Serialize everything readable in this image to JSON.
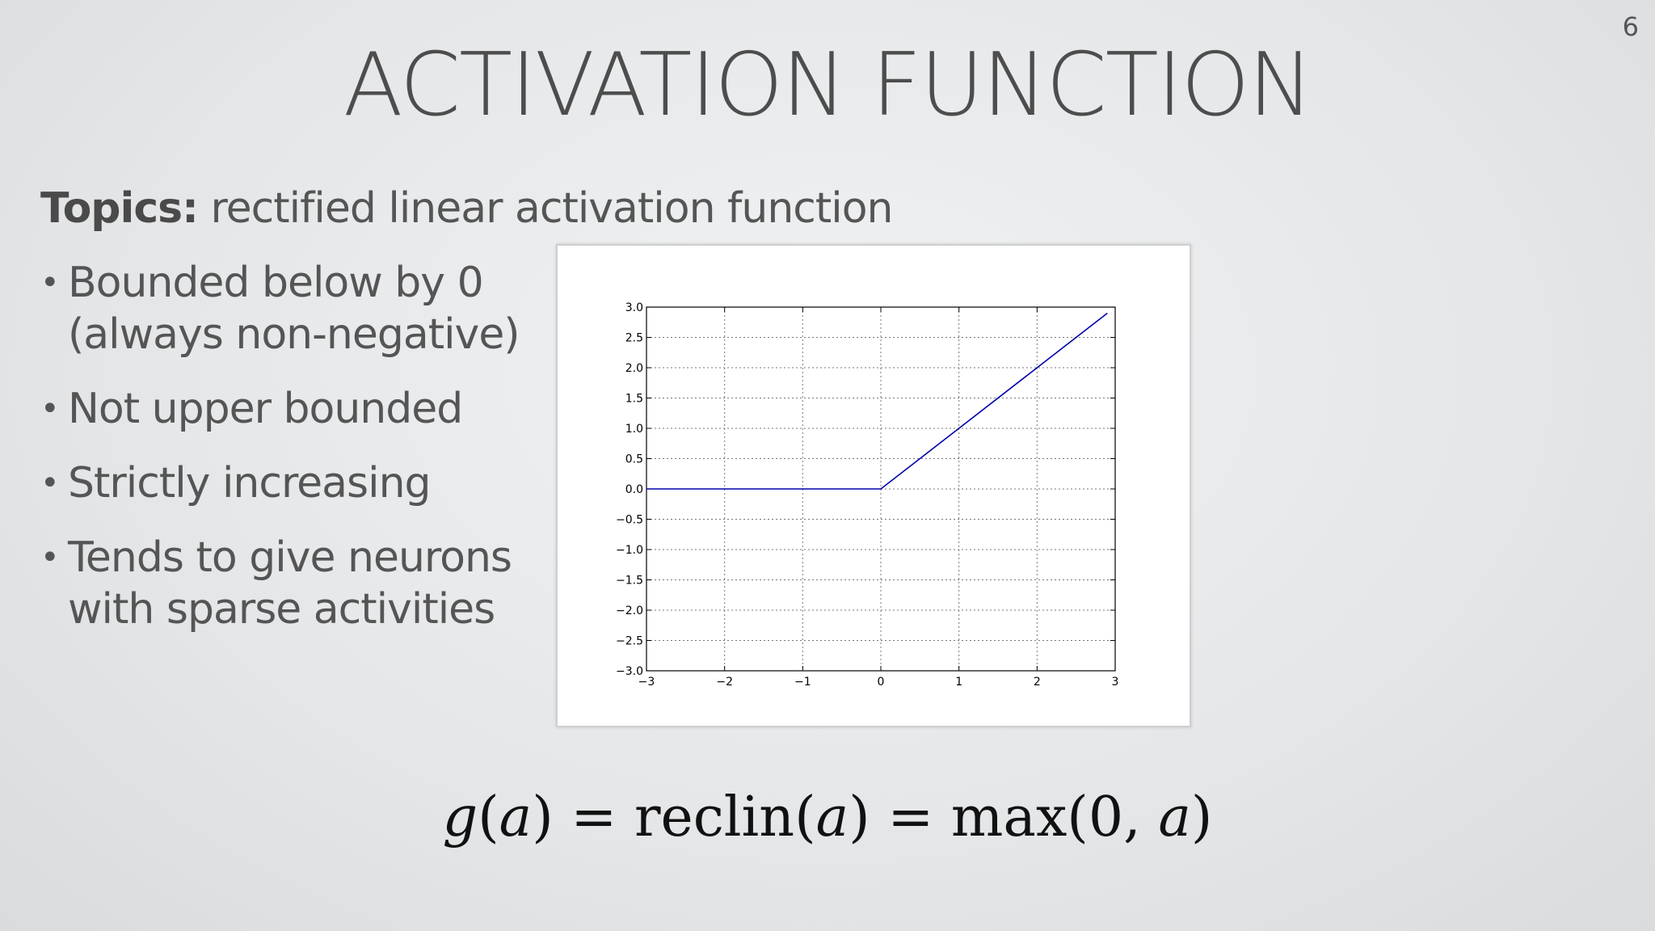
{
  "slide": {
    "number": "6",
    "title": "ACTIVATION FUNCTION",
    "topics_label": "Topics:",
    "topics_text": "rectified linear activation function",
    "bullets": [
      "Bounded below by 0\n(always non-negative)",
      "Not upper bounded",
      "Strictly increasing",
      "Tends to give neurons\nwith sparse activities"
    ],
    "formula": {
      "g": "g",
      "a": "a",
      "eq": "=",
      "reclin": "reclin",
      "max": "max",
      "zero": "0"
    }
  },
  "chart_data": {
    "type": "line",
    "title": "",
    "xlabel": "",
    "ylabel": "",
    "xlim": [
      -3,
      3
    ],
    "ylim": [
      -3,
      3
    ],
    "grid": true,
    "x_ticks": [
      "−3",
      "−2",
      "−1",
      "0",
      "1",
      "2",
      "3"
    ],
    "y_ticks": [
      "3.0",
      "2.5",
      "2.0",
      "1.5",
      "1.0",
      "0.5",
      "0.0",
      "−0.5",
      "−1.0",
      "−1.5",
      "−2.0",
      "−2.5",
      "−3.0"
    ],
    "series": [
      {
        "color": "#0000aa",
        "x": [
          -3,
          -2,
          -1,
          0,
          1,
          2,
          2.9
        ],
        "y": [
          0,
          0,
          0,
          0,
          1,
          2,
          2.9
        ]
      }
    ]
  }
}
